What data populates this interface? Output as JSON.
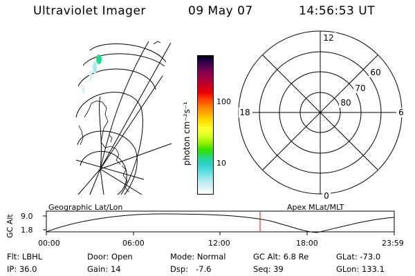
{
  "header": {
    "instrument": "Ultraviolet Imager",
    "date": "09 May 07",
    "time": "14:56:53 UT"
  },
  "colorbar": {
    "label": "photon cm⁻²s⁻¹",
    "ticks": [
      "100",
      "10"
    ],
    "colors": [
      "#000020",
      "#3a0050",
      "#7a0050",
      "#a00040",
      "#c80028",
      "#e60000",
      "#ff4000",
      "#ff8000",
      "#ffb000",
      "#ffe000",
      "#ffff30",
      "#d8ff20",
      "#90f000",
      "#30e000",
      "#20d890",
      "#30d0d0",
      "#60e0e0",
      "#a8eaf0",
      "#d8f0f4",
      "#ffffff"
    ]
  },
  "polar_plot": {
    "mlt_labels": {
      "top": "12",
      "left": "18",
      "right": "6",
      "bottom": "0"
    },
    "lat_labels": [
      "60",
      "70",
      "80"
    ]
  },
  "timeline": {
    "left_title": "Geographic Lat/Lon",
    "right_title": "Apex MLat/MLT",
    "axis_label": "GC Alt",
    "y_ticks": [
      "9.0",
      "1.8"
    ],
    "x_ticks": [
      "00:00",
      "06:00",
      "12:00",
      "18:00",
      "23:59"
    ],
    "current_time_color": "#ff0000"
  },
  "info": {
    "rows": [
      [
        "Flt: LBHL",
        "Door: Open",
        "Mode: Normal",
        "GC Alt: 6.8 Re",
        "GLat: -73.0"
      ],
      [
        "IP: 36.0",
        "Gain: 14",
        "Dsp:   -7.6",
        "Seq: 39",
        "GLon: 133.1"
      ]
    ]
  }
}
